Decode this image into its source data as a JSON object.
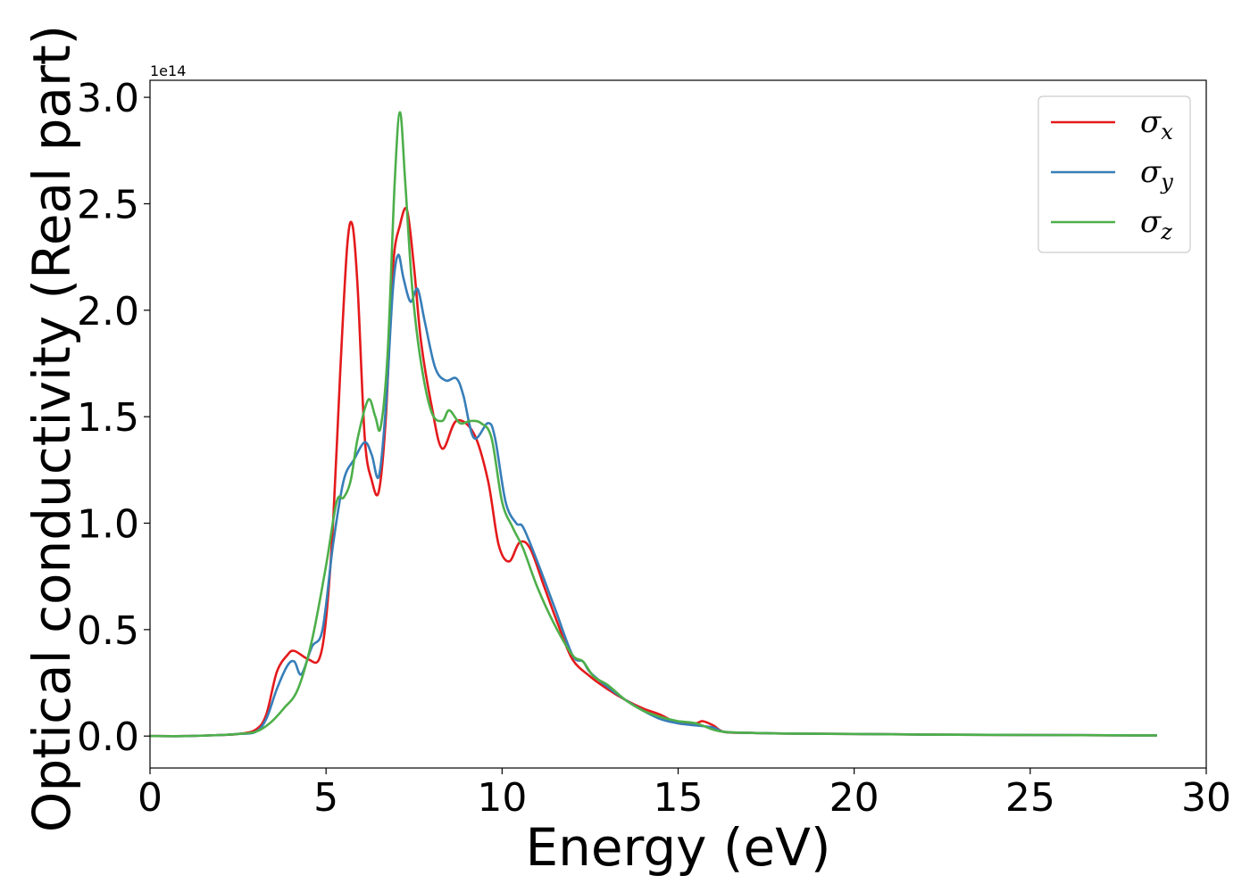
{
  "chart_data": {
    "type": "line",
    "title": "",
    "xlabel": "Energy (eV)",
    "ylabel": "Optical conductivity (Real part)",
    "y_offset_text": "1e14",
    "y_scale_factor": 100000000000000.0,
    "xlim": [
      0,
      30
    ],
    "ylim": [
      -0.15,
      3.08
    ],
    "xticks": [
      0,
      5,
      10,
      15,
      20,
      25,
      30
    ],
    "xtick_labels": [
      "0",
      "5",
      "10",
      "15",
      "20",
      "25",
      "30"
    ],
    "yticks": [
      0.0,
      0.5,
      1.0,
      1.5,
      2.0,
      2.5,
      3.0
    ],
    "ytick_labels": [
      "0.0",
      "0.5",
      "1.0",
      "1.5",
      "2.0",
      "2.5",
      "3.0"
    ],
    "grid": false,
    "legend": {
      "position": "top-right",
      "entries": [
        {
          "symbol": "σ",
          "subscript": "x",
          "color": "#e41a1c"
        },
        {
          "symbol": "σ",
          "subscript": "y",
          "color": "#377eb8"
        },
        {
          "symbol": "σ",
          "subscript": "z",
          "color": "#4daf4a"
        }
      ]
    },
    "series": [
      {
        "color": "#e41a1c",
        "x": [
          0,
          1,
          2,
          2.5,
          3.0,
          3.3,
          3.6,
          3.9,
          4.1,
          4.5,
          4.8,
          5.0,
          5.2,
          5.4,
          5.6,
          5.75,
          5.9,
          6.1,
          6.3,
          6.5,
          6.7,
          6.9,
          7.1,
          7.3,
          7.5,
          7.7,
          8.0,
          8.3,
          8.7,
          9.2,
          9.6,
          9.9,
          10.2,
          10.5,
          10.8,
          11.2,
          11.6,
          12.0,
          12.5,
          13.0,
          13.5,
          14.0,
          14.5,
          15.0,
          15.5,
          15.7,
          16.0,
          16.3,
          17.0,
          18.0,
          20.0,
          22.0,
          25.0,
          28.6
        ],
        "y": [
          0.0,
          0.0,
          0.005,
          0.01,
          0.03,
          0.1,
          0.3,
          0.38,
          0.4,
          0.36,
          0.36,
          0.55,
          1.0,
          1.7,
          2.3,
          2.4,
          2.1,
          1.4,
          1.2,
          1.15,
          1.5,
          2.2,
          2.4,
          2.47,
          2.2,
          1.85,
          1.55,
          1.35,
          1.48,
          1.42,
          1.2,
          0.9,
          0.82,
          0.91,
          0.88,
          0.7,
          0.52,
          0.36,
          0.28,
          0.22,
          0.17,
          0.13,
          0.1,
          0.06,
          0.06,
          0.07,
          0.05,
          0.02,
          0.015,
          0.012,
          0.01,
          0.007,
          0.005,
          0.003
        ]
      },
      {
        "color": "#377eb8",
        "x": [
          0,
          1,
          2,
          2.5,
          3.0,
          3.3,
          3.6,
          3.9,
          4.1,
          4.3,
          4.6,
          4.9,
          5.2,
          5.5,
          5.8,
          6.1,
          6.3,
          6.5,
          6.7,
          6.9,
          7.05,
          7.2,
          7.4,
          7.6,
          7.8,
          8.1,
          8.4,
          8.7,
          8.9,
          9.2,
          9.6,
          9.8,
          10.1,
          10.4,
          10.6,
          11.0,
          11.5,
          12.0,
          12.3,
          12.5,
          13.0,
          13.5,
          14.0,
          14.5,
          15.0,
          15.5,
          16.0,
          16.3,
          17.0,
          18.0,
          20.0,
          22.0,
          25.0,
          28.6
        ],
        "y": [
          0.0,
          0.0,
          0.005,
          0.01,
          0.02,
          0.08,
          0.22,
          0.33,
          0.35,
          0.29,
          0.42,
          0.5,
          0.9,
          1.2,
          1.3,
          1.38,
          1.32,
          1.22,
          1.55,
          2.1,
          2.26,
          2.15,
          2.04,
          2.1,
          1.95,
          1.73,
          1.67,
          1.68,
          1.6,
          1.4,
          1.47,
          1.4,
          1.1,
          1.0,
          0.98,
          0.82,
          0.6,
          0.38,
          0.35,
          0.3,
          0.23,
          0.17,
          0.12,
          0.08,
          0.06,
          0.05,
          0.04,
          0.02,
          0.015,
          0.012,
          0.01,
          0.007,
          0.005,
          0.003
        ]
      },
      {
        "color": "#4daf4a",
        "x": [
          0,
          1,
          2,
          2.5,
          3.0,
          3.4,
          3.8,
          4.2,
          4.6,
          5.0,
          5.3,
          5.5,
          5.7,
          5.9,
          6.2,
          6.4,
          6.55,
          6.75,
          6.95,
          7.1,
          7.25,
          7.45,
          7.7,
          8.0,
          8.3,
          8.5,
          8.8,
          9.1,
          9.4,
          9.7,
          10.0,
          10.3,
          10.6,
          11.0,
          11.5,
          12.0,
          12.3,
          12.6,
          13.0,
          13.5,
          14.0,
          14.5,
          15.0,
          15.5,
          16.0,
          16.3,
          17.0,
          18.0,
          20.0,
          22.0,
          25.0,
          28.6
        ],
        "y": [
          0.0,
          0.0,
          0.005,
          0.01,
          0.02,
          0.06,
          0.13,
          0.22,
          0.45,
          0.8,
          1.1,
          1.12,
          1.2,
          1.4,
          1.58,
          1.5,
          1.45,
          1.8,
          2.6,
          2.93,
          2.6,
          2.1,
          1.75,
          1.52,
          1.48,
          1.53,
          1.47,
          1.48,
          1.47,
          1.4,
          1.1,
          0.98,
          0.88,
          0.7,
          0.52,
          0.38,
          0.35,
          0.28,
          0.24,
          0.17,
          0.12,
          0.09,
          0.07,
          0.06,
          0.03,
          0.02,
          0.015,
          0.012,
          0.01,
          0.007,
          0.005,
          0.003
        ]
      }
    ]
  }
}
